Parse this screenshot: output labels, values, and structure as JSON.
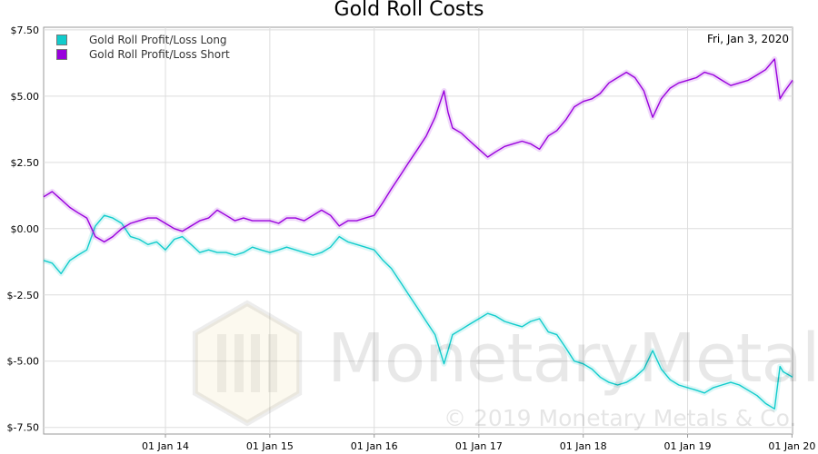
{
  "chart_data": {
    "type": "line",
    "title": "Gold Roll Costs",
    "date_readout": "Fri, Jan 3, 2020",
    "xlim": [
      "2012-11-01",
      "2020-01-03"
    ],
    "ylim": [
      -7.75,
      7.6
    ],
    "x_ticks": [
      {
        "date": "2014-01-01",
        "label": "01 Jan 14"
      },
      {
        "date": "2015-01-01",
        "label": "01 Jan 15"
      },
      {
        "date": "2016-01-01",
        "label": "01 Jan 16"
      },
      {
        "date": "2017-01-01",
        "label": "01 Jan 17"
      },
      {
        "date": "2018-01-01",
        "label": "01 Jan 18"
      },
      {
        "date": "2019-01-01",
        "label": "01 Jan 19"
      },
      {
        "date": "2020-01-01",
        "label": "01 Jan 20"
      }
    ],
    "y_ticks": [
      {
        "value": 7.5,
        "label": "$7.50"
      },
      {
        "value": 5.0,
        "label": "$5.00"
      },
      {
        "value": 2.5,
        "label": "$2.50"
      },
      {
        "value": 0.0,
        "label": "$0.00"
      },
      {
        "value": -2.5,
        "label": "$-2.50"
      },
      {
        "value": -5.0,
        "label": "$-5.00"
      },
      {
        "value": -7.5,
        "label": "$-7.50"
      }
    ],
    "grid": true,
    "legend_position": "top-left",
    "series": [
      {
        "name": "Gold Roll Profit/Loss Long",
        "color": "#11cccc",
        "points": [
          [
            "2012-11-01",
            -1.2
          ],
          [
            "2012-12-01",
            -1.3
          ],
          [
            "2013-01-01",
            -1.7
          ],
          [
            "2013-02-01",
            -1.2
          ],
          [
            "2013-03-01",
            -1.0
          ],
          [
            "2013-04-01",
            -0.8
          ],
          [
            "2013-05-01",
            0.1
          ],
          [
            "2013-06-01",
            0.5
          ],
          [
            "2013-07-01",
            0.4
          ],
          [
            "2013-08-01",
            0.2
          ],
          [
            "2013-09-01",
            -0.3
          ],
          [
            "2013-10-01",
            -0.4
          ],
          [
            "2013-11-01",
            -0.6
          ],
          [
            "2013-12-01",
            -0.5
          ],
          [
            "2014-01-01",
            -0.8
          ],
          [
            "2014-02-01",
            -0.4
          ],
          [
            "2014-03-01",
            -0.3
          ],
          [
            "2014-04-01",
            -0.6
          ],
          [
            "2014-05-01",
            -0.9
          ],
          [
            "2014-06-01",
            -0.8
          ],
          [
            "2014-07-01",
            -0.9
          ],
          [
            "2014-08-01",
            -0.9
          ],
          [
            "2014-09-01",
            -1.0
          ],
          [
            "2014-10-01",
            -0.9
          ],
          [
            "2014-11-01",
            -0.7
          ],
          [
            "2014-12-01",
            -0.8
          ],
          [
            "2015-01-01",
            -0.9
          ],
          [
            "2015-02-01",
            -0.8
          ],
          [
            "2015-03-01",
            -0.7
          ],
          [
            "2015-04-01",
            -0.8
          ],
          [
            "2015-05-01",
            -0.9
          ],
          [
            "2015-06-01",
            -1.0
          ],
          [
            "2015-07-01",
            -0.9
          ],
          [
            "2015-08-01",
            -0.7
          ],
          [
            "2015-09-01",
            -0.3
          ],
          [
            "2015-10-01",
            -0.5
          ],
          [
            "2015-11-01",
            -0.6
          ],
          [
            "2015-12-01",
            -0.7
          ],
          [
            "2016-01-01",
            -0.8
          ],
          [
            "2016-02-01",
            -1.2
          ],
          [
            "2016-03-01",
            -1.5
          ],
          [
            "2016-04-01",
            -2.0
          ],
          [
            "2016-05-01",
            -2.5
          ],
          [
            "2016-06-01",
            -3.0
          ],
          [
            "2016-07-01",
            -3.5
          ],
          [
            "2016-08-01",
            -4.0
          ],
          [
            "2016-09-01",
            -5.1
          ],
          [
            "2016-09-15",
            -4.6
          ],
          [
            "2016-10-01",
            -4.0
          ],
          [
            "2016-11-01",
            -3.8
          ],
          [
            "2016-12-01",
            -3.6
          ],
          [
            "2017-01-01",
            -3.4
          ],
          [
            "2017-02-01",
            -3.2
          ],
          [
            "2017-03-01",
            -3.3
          ],
          [
            "2017-04-01",
            -3.5
          ],
          [
            "2017-05-01",
            -3.6
          ],
          [
            "2017-06-01",
            -3.7
          ],
          [
            "2017-07-01",
            -3.5
          ],
          [
            "2017-08-01",
            -3.4
          ],
          [
            "2017-09-01",
            -3.9
          ],
          [
            "2017-10-01",
            -4.0
          ],
          [
            "2017-11-01",
            -4.5
          ],
          [
            "2017-12-01",
            -5.0
          ],
          [
            "2018-01-01",
            -5.1
          ],
          [
            "2018-02-01",
            -5.3
          ],
          [
            "2018-03-01",
            -5.6
          ],
          [
            "2018-04-01",
            -5.8
          ],
          [
            "2018-05-01",
            -5.9
          ],
          [
            "2018-06-01",
            -5.8
          ],
          [
            "2018-07-01",
            -5.6
          ],
          [
            "2018-08-01",
            -5.3
          ],
          [
            "2018-09-01",
            -4.6
          ],
          [
            "2018-10-01",
            -5.3
          ],
          [
            "2018-11-01",
            -5.7
          ],
          [
            "2018-12-01",
            -5.9
          ],
          [
            "2019-01-01",
            -6.0
          ],
          [
            "2019-02-01",
            -6.1
          ],
          [
            "2019-03-01",
            -6.2
          ],
          [
            "2019-04-01",
            -6.0
          ],
          [
            "2019-05-01",
            -5.9
          ],
          [
            "2019-06-01",
            -5.8
          ],
          [
            "2019-07-01",
            -5.9
          ],
          [
            "2019-08-01",
            -6.1
          ],
          [
            "2019-09-01",
            -6.3
          ],
          [
            "2019-10-01",
            -6.6
          ],
          [
            "2019-11-01",
            -6.8
          ],
          [
            "2019-11-20",
            -5.2
          ],
          [
            "2019-12-01",
            -5.4
          ],
          [
            "2020-01-03",
            -5.6
          ]
        ]
      },
      {
        "name": "Gold Roll Profit/Loss Short",
        "color": "#9900dd",
        "points": [
          [
            "2012-11-01",
            1.2
          ],
          [
            "2012-12-01",
            1.4
          ],
          [
            "2013-01-01",
            1.1
          ],
          [
            "2013-02-01",
            0.8
          ],
          [
            "2013-03-01",
            0.6
          ],
          [
            "2013-04-01",
            0.4
          ],
          [
            "2013-05-01",
            -0.3
          ],
          [
            "2013-06-01",
            -0.5
          ],
          [
            "2013-07-01",
            -0.3
          ],
          [
            "2013-08-01",
            0.0
          ],
          [
            "2013-09-01",
            0.2
          ],
          [
            "2013-10-01",
            0.3
          ],
          [
            "2013-11-01",
            0.4
          ],
          [
            "2013-12-01",
            0.4
          ],
          [
            "2014-01-01",
            0.2
          ],
          [
            "2014-02-01",
            0.0
          ],
          [
            "2014-03-01",
            -0.1
          ],
          [
            "2014-04-01",
            0.1
          ],
          [
            "2014-05-01",
            0.3
          ],
          [
            "2014-06-01",
            0.4
          ],
          [
            "2014-07-01",
            0.7
          ],
          [
            "2014-08-01",
            0.5
          ],
          [
            "2014-09-01",
            0.3
          ],
          [
            "2014-10-01",
            0.4
          ],
          [
            "2014-11-01",
            0.3
          ],
          [
            "2014-12-01",
            0.3
          ],
          [
            "2015-01-01",
            0.3
          ],
          [
            "2015-02-01",
            0.2
          ],
          [
            "2015-03-01",
            0.4
          ],
          [
            "2015-04-01",
            0.4
          ],
          [
            "2015-05-01",
            0.3
          ],
          [
            "2015-06-01",
            0.5
          ],
          [
            "2015-07-01",
            0.7
          ],
          [
            "2015-08-01",
            0.5
          ],
          [
            "2015-09-01",
            0.1
          ],
          [
            "2015-10-01",
            0.3
          ],
          [
            "2015-11-01",
            0.3
          ],
          [
            "2015-12-01",
            0.4
          ],
          [
            "2016-01-01",
            0.5
          ],
          [
            "2016-02-01",
            1.0
          ],
          [
            "2016-03-01",
            1.5
          ],
          [
            "2016-04-01",
            2.0
          ],
          [
            "2016-05-01",
            2.5
          ],
          [
            "2016-06-01",
            3.0
          ],
          [
            "2016-07-01",
            3.5
          ],
          [
            "2016-08-01",
            4.2
          ],
          [
            "2016-09-01",
            5.2
          ],
          [
            "2016-09-15",
            4.4
          ],
          [
            "2016-10-01",
            3.8
          ],
          [
            "2016-11-01",
            3.6
          ],
          [
            "2016-12-01",
            3.3
          ],
          [
            "2017-01-01",
            3.0
          ],
          [
            "2017-02-01",
            2.7
          ],
          [
            "2017-03-01",
            2.9
          ],
          [
            "2017-04-01",
            3.1
          ],
          [
            "2017-05-01",
            3.2
          ],
          [
            "2017-06-01",
            3.3
          ],
          [
            "2017-07-01",
            3.2
          ],
          [
            "2017-08-01",
            3.0
          ],
          [
            "2017-09-01",
            3.5
          ],
          [
            "2017-10-01",
            3.7
          ],
          [
            "2017-11-01",
            4.1
          ],
          [
            "2017-12-01",
            4.6
          ],
          [
            "2018-01-01",
            4.8
          ],
          [
            "2018-02-01",
            4.9
          ],
          [
            "2018-03-01",
            5.1
          ],
          [
            "2018-04-01",
            5.5
          ],
          [
            "2018-05-01",
            5.7
          ],
          [
            "2018-06-01",
            5.9
          ],
          [
            "2018-07-01",
            5.7
          ],
          [
            "2018-08-01",
            5.2
          ],
          [
            "2018-09-01",
            4.2
          ],
          [
            "2018-10-01",
            4.9
          ],
          [
            "2018-11-01",
            5.3
          ],
          [
            "2018-12-01",
            5.5
          ],
          [
            "2019-01-01",
            5.6
          ],
          [
            "2019-02-01",
            5.7
          ],
          [
            "2019-03-01",
            5.9
          ],
          [
            "2019-04-01",
            5.8
          ],
          [
            "2019-05-01",
            5.6
          ],
          [
            "2019-06-01",
            5.4
          ],
          [
            "2019-07-01",
            5.5
          ],
          [
            "2019-08-01",
            5.6
          ],
          [
            "2019-09-01",
            5.8
          ],
          [
            "2019-10-01",
            6.0
          ],
          [
            "2019-11-01",
            6.4
          ],
          [
            "2019-11-20",
            4.9
          ],
          [
            "2019-12-01",
            5.1
          ],
          [
            "2020-01-03",
            5.6
          ]
        ]
      }
    ]
  },
  "watermark": {
    "brand": "MonetaryMetals",
    "registered_mark": "®",
    "copyright": "© 2019 Monetary Metals & Co."
  }
}
